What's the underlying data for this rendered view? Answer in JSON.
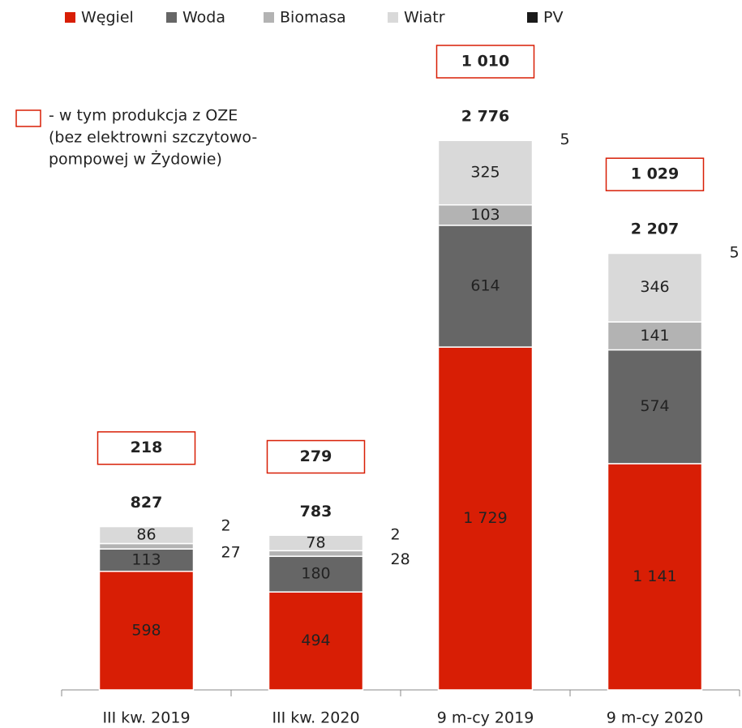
{
  "chart_data": {
    "type": "stacked_bar",
    "categories": [
      "III kw. 2019",
      "III kw. 2020",
      "9 m-cy 2019",
      "9 m-cy 2020"
    ],
    "series": [
      {
        "name": "Węgiel",
        "color": "#d81e05",
        "values": [
          598,
          494,
          1729,
          1141
        ],
        "value_labels": [
          "598",
          "494",
          "1 729",
          "1 141"
        ]
      },
      {
        "name": "Woda",
        "color": "#666666",
        "values": [
          113,
          180,
          614,
          574
        ]
      },
      {
        "name": "Biomasa",
        "color": "#b3b3b3",
        "values": [
          27,
          28,
          103,
          141
        ]
      },
      {
        "name": "Wiatr",
        "color": "#d9d9d9",
        "values": [
          86,
          78,
          325,
          346
        ]
      },
      {
        "name": "PV",
        "color": "#1a1a1a",
        "values": [
          2,
          2,
          5,
          5
        ]
      }
    ],
    "totals": {
      "values": [
        827,
        783,
        2776,
        2207
      ],
      "value_labels": [
        "827",
        "783",
        "2 776",
        "2 207"
      ]
    },
    "oze": {
      "note": [
        "- w tym produkcja z OZE",
        "(bez elektrowni szczytowo-",
        "pompowej w Żydowie)"
      ],
      "color": "#d81e05",
      "values": [
        218,
        279,
        1010,
        1029
      ],
      "value_labels": [
        "218",
        "279",
        "1 010",
        "1 029"
      ]
    }
  }
}
